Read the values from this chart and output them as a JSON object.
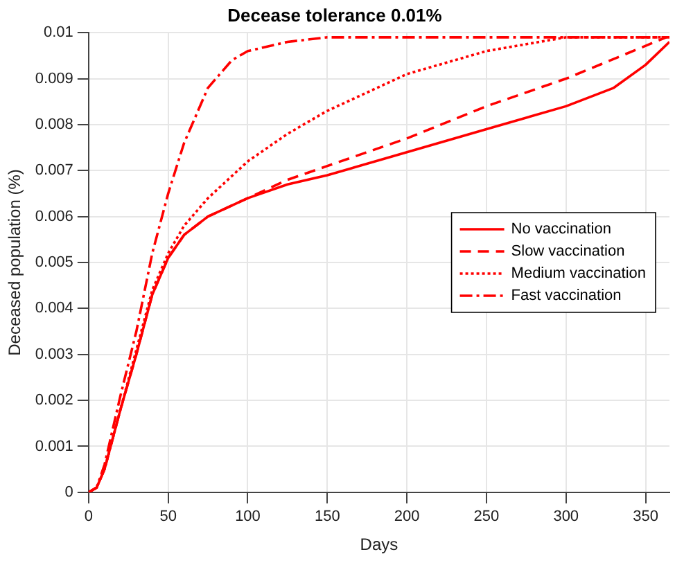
{
  "chart_data": {
    "type": "line",
    "title": "Decease tolerance 0.01%",
    "xlabel": "Days",
    "ylabel": "Deceased population (%)",
    "xlim": [
      0,
      365
    ],
    "xticks": [
      0,
      50,
      100,
      150,
      200,
      250,
      300,
      350
    ],
    "ylim": [
      0,
      0.01
    ],
    "yticks": [
      0,
      0.001,
      0.002,
      0.003,
      0.004,
      0.005,
      0.006,
      0.007,
      0.008,
      0.009,
      0.01
    ],
    "grid": true,
    "legend": "right",
    "marker": "none",
    "series": [
      {
        "name": "No vaccination",
        "color": "#ff0000",
        "line_style": "solid",
        "x": [
          0,
          5,
          10,
          20,
          30,
          40,
          50,
          60,
          75,
          100,
          125,
          150,
          200,
          250,
          300,
          330,
          350,
          365
        ],
        "values": [
          0,
          0.0001,
          0.0005,
          0.0018,
          0.003,
          0.0043,
          0.0051,
          0.0056,
          0.006,
          0.0064,
          0.0067,
          0.0069,
          0.0074,
          0.0079,
          0.0084,
          0.0088,
          0.0093,
          0.0098
        ]
      },
      {
        "name": "Slow vaccination",
        "color": "#ff0000",
        "line_style": "dashed",
        "x": [
          0,
          5,
          10,
          20,
          30,
          40,
          50,
          60,
          75,
          100,
          125,
          150,
          200,
          250,
          300,
          363
        ],
        "values": [
          0,
          0.0001,
          0.0005,
          0.0018,
          0.003,
          0.0043,
          0.0051,
          0.0056,
          0.006,
          0.0064,
          0.0068,
          0.0071,
          0.0077,
          0.0084,
          0.009,
          0.0099
        ]
      },
      {
        "name": "Medium vaccination",
        "color": "#ff0000",
        "line_style": "dotted",
        "x": [
          0,
          5,
          10,
          20,
          30,
          40,
          50,
          60,
          75,
          100,
          125,
          150,
          200,
          250,
          300,
          360
        ],
        "values": [
          0,
          0.0001,
          0.0005,
          0.0018,
          0.0031,
          0.0044,
          0.0052,
          0.0058,
          0.0064,
          0.0072,
          0.0078,
          0.0083,
          0.0091,
          0.0096,
          0.0099,
          0.0099
        ]
      },
      {
        "name": "Fast vaccination",
        "color": "#ff0000",
        "line_style": "dashdot",
        "x": [
          0,
          5,
          10,
          20,
          30,
          40,
          50,
          60,
          75,
          90,
          100,
          125,
          150,
          200,
          365
        ],
        "values": [
          0,
          0.0001,
          0.0006,
          0.0021,
          0.0035,
          0.0052,
          0.0065,
          0.0076,
          0.0088,
          0.0094,
          0.0096,
          0.0098,
          0.0099,
          0.0099,
          0.0099
        ]
      }
    ]
  }
}
